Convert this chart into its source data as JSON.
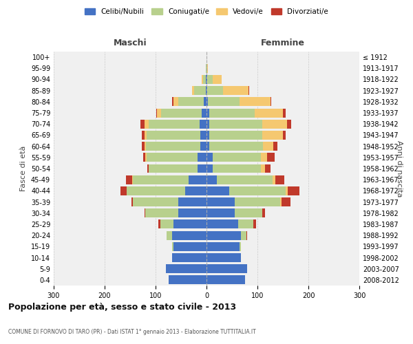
{
  "age_groups": [
    "0-4",
    "5-9",
    "10-14",
    "15-19",
    "20-24",
    "25-29",
    "30-34",
    "35-39",
    "40-44",
    "45-49",
    "50-54",
    "55-59",
    "60-64",
    "65-69",
    "70-74",
    "75-79",
    "80-84",
    "85-89",
    "90-94",
    "95-99",
    "100+"
  ],
  "birth_years": [
    "2008-2012",
    "2003-2007",
    "1998-2002",
    "1993-1997",
    "1988-1992",
    "1983-1987",
    "1978-1982",
    "1973-1977",
    "1968-1972",
    "1963-1967",
    "1958-1962",
    "1953-1957",
    "1948-1952",
    "1943-1947",
    "1938-1942",
    "1933-1937",
    "1928-1932",
    "1923-1927",
    "1918-1922",
    "1913-1917",
    "≤ 1912"
  ],
  "maschi": {
    "celibi": [
      75,
      80,
      68,
      65,
      68,
      65,
      55,
      55,
      42,
      35,
      18,
      18,
      12,
      12,
      14,
      9,
      5,
      2,
      1,
      0,
      0
    ],
    "coniugati": [
      0,
      0,
      0,
      2,
      10,
      25,
      65,
      90,
      115,
      110,
      95,
      100,
      107,
      105,
      100,
      80,
      50,
      22,
      6,
      1,
      0
    ],
    "vedovi": [
      0,
      0,
      0,
      0,
      0,
      0,
      0,
      0,
      0,
      1,
      1,
      2,
      3,
      5,
      8,
      8,
      10,
      5,
      2,
      0,
      0
    ],
    "divorziati": [
      0,
      0,
      0,
      0,
      0,
      5,
      2,
      2,
      12,
      12,
      2,
      5,
      5,
      5,
      8,
      2,
      2,
      0,
      0,
      0,
      0
    ]
  },
  "femmine": {
    "nubili": [
      75,
      80,
      68,
      65,
      68,
      62,
      55,
      55,
      45,
      20,
      12,
      12,
      6,
      5,
      5,
      5,
      3,
      2,
      2,
      0,
      0
    ],
    "coniugate": [
      0,
      0,
      0,
      2,
      10,
      30,
      55,
      90,
      110,
      110,
      95,
      95,
      105,
      105,
      105,
      90,
      62,
      30,
      10,
      1,
      0
    ],
    "vedove": [
      0,
      0,
      0,
      0,
      0,
      0,
      0,
      2,
      5,
      5,
      8,
      12,
      20,
      40,
      48,
      55,
      60,
      50,
      18,
      2,
      0
    ],
    "divorziate": [
      0,
      0,
      0,
      0,
      2,
      5,
      5,
      18,
      22,
      18,
      10,
      15,
      8,
      5,
      8,
      5,
      2,
      2,
      0,
      0,
      0
    ]
  },
  "colors": {
    "celibi": "#4472c4",
    "coniugati": "#b8d08d",
    "vedovi": "#f5c870",
    "divorziati": "#c0392b"
  },
  "xlim": 300,
  "title": "Popolazione per età, sesso e stato civile - 2013",
  "subtitle": "COMUNE DI FORNOVO DI TARO (PR) - Dati ISTAT 1° gennaio 2013 - Elaborazione TUTTITALIA.IT",
  "ylabel_left": "Fasce di età",
  "ylabel_right": "Anni di nascita",
  "legend_labels": [
    "Celibi/Nubili",
    "Coniugati/e",
    "Vedovi/e",
    "Divorziati/e"
  ],
  "bg_color": "#f0f0f0",
  "grid_color": "#cccccc"
}
